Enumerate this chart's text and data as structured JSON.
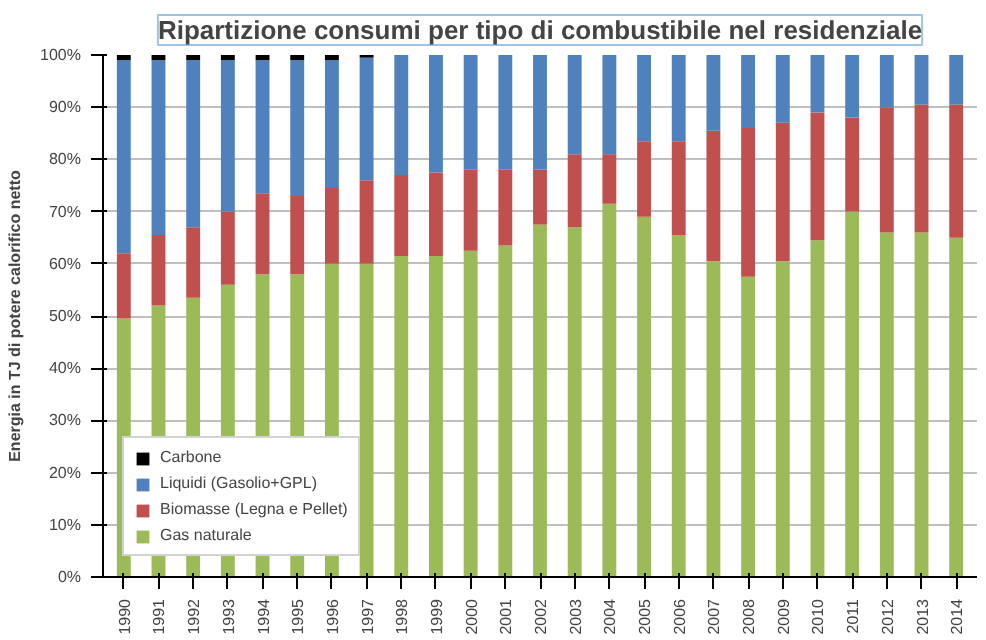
{
  "chart_data": {
    "type": "bar",
    "stacked": true,
    "title": "Ripartizione consumi per tipo di combustibile nel residenziale",
    "ylabel": "Energia in TJ di potere calorifico netto",
    "categories": [
      "1990",
      "1991",
      "1992",
      "1993",
      "1994",
      "1995",
      "1996",
      "1997",
      "1998",
      "1999",
      "2000",
      "2001",
      "2002",
      "2003",
      "2004",
      "2005",
      "2006",
      "2007",
      "2008",
      "2009",
      "2010",
      "2011",
      "2012",
      "2013",
      "2014"
    ],
    "series": [
      {
        "name": "Gas naturale",
        "color": "#9bbb59",
        "values": [
          49.5,
          52,
          53.5,
          56,
          58,
          58,
          60,
          60,
          61.5,
          61.5,
          62.5,
          63.5,
          67.5,
          67,
          71.5,
          69,
          65.5,
          60.5,
          57.5,
          60.5,
          64.5,
          70,
          66,
          66,
          65
        ]
      },
      {
        "name": "Biomasse (Legna e Pellet)",
        "color": "#c0504d",
        "values": [
          12.5,
          13.5,
          13.5,
          14,
          15.5,
          15,
          14.5,
          16,
          15.5,
          16,
          15.5,
          14.5,
          10.5,
          14,
          9.5,
          14.5,
          18,
          25,
          28.5,
          26.5,
          24.5,
          18,
          24,
          24.5,
          25.5
        ]
      },
      {
        "name": "Liquidi (Gasolio+GPL)",
        "color": "#4f81bd",
        "values": [
          37,
          33.5,
          32,
          29,
          25.5,
          26,
          24.5,
          23.5,
          23,
          22.5,
          22,
          22,
          22,
          19,
          19,
          16.5,
          16.5,
          14.5,
          14,
          13,
          11,
          12,
          10,
          9.5,
          9.5
        ]
      },
      {
        "name": "Carbone",
        "color": "#000000",
        "values": [
          1,
          1,
          1,
          1,
          1,
          1,
          1,
          0.5,
          0,
          0,
          0,
          0,
          0,
          0,
          0,
          0,
          0,
          0,
          0,
          0,
          0,
          0,
          0,
          0,
          0
        ]
      }
    ],
    "ylim": [
      0,
      100
    ],
    "yticks": [
      {
        "value": 0,
        "label": "0%"
      },
      {
        "value": 10,
        "label": "10%"
      },
      {
        "value": 20,
        "label": "20%"
      },
      {
        "value": 30,
        "label": "30%"
      },
      {
        "value": 40,
        "label": "40%"
      },
      {
        "value": 50,
        "label": "50%"
      },
      {
        "value": 60,
        "label": "60%"
      },
      {
        "value": 70,
        "label": "70%"
      },
      {
        "value": 80,
        "label": "80%"
      },
      {
        "value": 90,
        "label": "90%"
      },
      {
        "value": 100,
        "label": "100%"
      }
    ],
    "grid": "y",
    "legend": "bottom left"
  }
}
